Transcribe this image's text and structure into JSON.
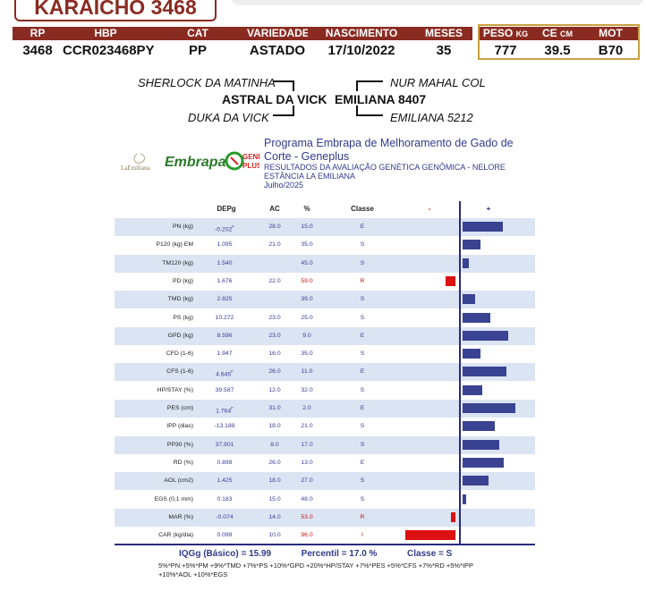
{
  "animal": {
    "name": "KARAICHO 3468",
    "headers": [
      "RP",
      "HBP",
      "CAT",
      "VARIEDADE",
      "NASCIMENTO",
      "MESES"
    ],
    "values": [
      "3468",
      "CCR023468PY",
      "PP",
      "ASTADO",
      "17/10/2022",
      "35"
    ],
    "gold_headers": [
      {
        "label": "PESO",
        "unit": "KG"
      },
      {
        "label": "CE",
        "unit": "CM"
      },
      {
        "label": "MOT",
        "unit": ""
      }
    ],
    "gold_values": [
      "777",
      "39.5",
      "B70"
    ]
  },
  "pedigree": {
    "sire": "ASTRAL DA VICK",
    "sire_sire": "SHERLOCK DA MATINHA",
    "sire_dam": "DUKA DA VICK",
    "dam": "EMILIANA 8407",
    "dam_sire": "NUR MAHAL COL",
    "dam_dam": "EMILIANA 5212"
  },
  "logos": {
    "laemiliana": "LaEmiliana",
    "embrapa": "Embrapa",
    "geneplus_1": "GENE",
    "geneplus_2": "PLUS"
  },
  "program": {
    "title": "Programa Embrapa de Melhoramento de Gado de Corte - Geneplus",
    "subtitle_1": "RESULTADOS DA AVALIAÇÃO GENÉTICA GENÔMICA - NELORE",
    "subtitle_2": "ESTÂNCIA LA EMILIANA",
    "date": "Julho/2025"
  },
  "table": {
    "headers": {
      "dep": "DEPg",
      "ac": "AC",
      "pct": "%",
      "classe": "Classe",
      "neg": "-",
      "pos": "+"
    },
    "rows": [
      {
        "label": "PN (kg)",
        "dep": "-0.202",
        "sup": "F",
        "ac": "28.0",
        "pct": "15.0",
        "classe": "E",
        "red": false,
        "bar": 0.8
      },
      {
        "label": "P120 (kg) EM",
        "dep": "1.095",
        "sup": "",
        "ac": "21.0",
        "pct": "35.0",
        "classe": "S",
        "red": false,
        "bar": 0.35
      },
      {
        "label": "TM120 (kg)",
        "dep": "1.540",
        "sup": "",
        "ac": "",
        "pct": "45.0",
        "classe": "S",
        "red": false,
        "bar": 0.13
      },
      {
        "label": "PD (kg)",
        "dep": "1.676",
        "sup": "",
        "ac": "22.0",
        "pct": "59.0",
        "classe": "R",
        "red": true,
        "bar": -0.2
      },
      {
        "label": "TMD (kg)",
        "dep": "2.825",
        "sup": "",
        "ac": "",
        "pct": "39.0",
        "classe": "S",
        "red": false,
        "bar": 0.25
      },
      {
        "label": "PS (kg)",
        "dep": "10.272",
        "sup": "",
        "ac": "23.0",
        "pct": "25.0",
        "classe": "S",
        "red": false,
        "bar": 0.56
      },
      {
        "label": "GPD (kg)",
        "dep": "8.596",
        "sup": "",
        "ac": "23.0",
        "pct": "9.0",
        "classe": "E",
        "red": false,
        "bar": 0.91
      },
      {
        "label": "CFD (1-6)",
        "dep": "1.947",
        "sup": "",
        "ac": "16.0",
        "pct": "35.0",
        "classe": "S",
        "red": false,
        "bar": 0.35
      },
      {
        "label": "CFS (1-6)",
        "dep": "4.645",
        "sup": "F",
        "ac": "26.0",
        "pct": "11.0",
        "classe": "E",
        "red": false,
        "bar": 0.87
      },
      {
        "label": "HP/STAY (%)",
        "dep": "39.587",
        "sup": "",
        "ac": "12.0",
        "pct": "32.0",
        "classe": "S",
        "red": false,
        "bar": 0.4
      },
      {
        "label": "PES (cm)",
        "dep": "1.764",
        "sup": "F",
        "ac": "31.0",
        "pct": "2.0",
        "classe": "E",
        "red": false,
        "bar": 1.05
      },
      {
        "label": "IPP (dias)",
        "dep": "-13.189",
        "sup": "",
        "ac": "18.0",
        "pct": "21.0",
        "classe": "S",
        "red": false,
        "bar": 0.65
      },
      {
        "label": "PP30 (%)",
        "dep": "37.901",
        "sup": "",
        "ac": "8.0",
        "pct": "17.0",
        "classe": "S",
        "red": false,
        "bar": 0.74
      },
      {
        "label": "RD (%)",
        "dep": "0.898",
        "sup": "",
        "ac": "26.0",
        "pct": "13.0",
        "classe": "E",
        "red": false,
        "bar": 0.82
      },
      {
        "label": "AOL (cm2)",
        "dep": "1.425",
        "sup": "",
        "ac": "18.0",
        "pct": "27.0",
        "classe": "S",
        "red": false,
        "bar": 0.52
      },
      {
        "label": "EGS (0,1 mm)",
        "dep": "0.183",
        "sup": "",
        "ac": "15.0",
        "pct": "48.0",
        "classe": "S",
        "red": false,
        "bar": 0.07
      },
      {
        "label": "MAR (%)",
        "dep": "-0.074",
        "sup": "",
        "ac": "14.0",
        "pct": "53.0",
        "classe": "R",
        "red": true,
        "bar": -0.09
      },
      {
        "label": "CAR (kg/dia)",
        "dep": "0.098",
        "sup": "",
        "ac": "10.0",
        "pct": "96.0",
        "classe": "I",
        "red": true,
        "bar": -1.0
      }
    ]
  },
  "summary": {
    "iqg": "IQGg (Básico) = 15.99",
    "percentil": "Percentil = 17.0 %",
    "classe": "Classe = S",
    "formula_1": "5%*PN +5%*PM +9%*TMD +7%*PS +10%*GPD +20%*HP/STAY +7%*PES +5%*CFS +7%*RD +5%*IPP",
    "formula_2": "+10%*AOL +10%*EGS"
  },
  "colors": {
    "brand": "#8a2b22",
    "gold": "#c8a040",
    "bar_positive": "#3a4392",
    "bar_negative": "#dd1111",
    "row_shade": "#dbe4f2",
    "text_blue": "#333a8a"
  }
}
